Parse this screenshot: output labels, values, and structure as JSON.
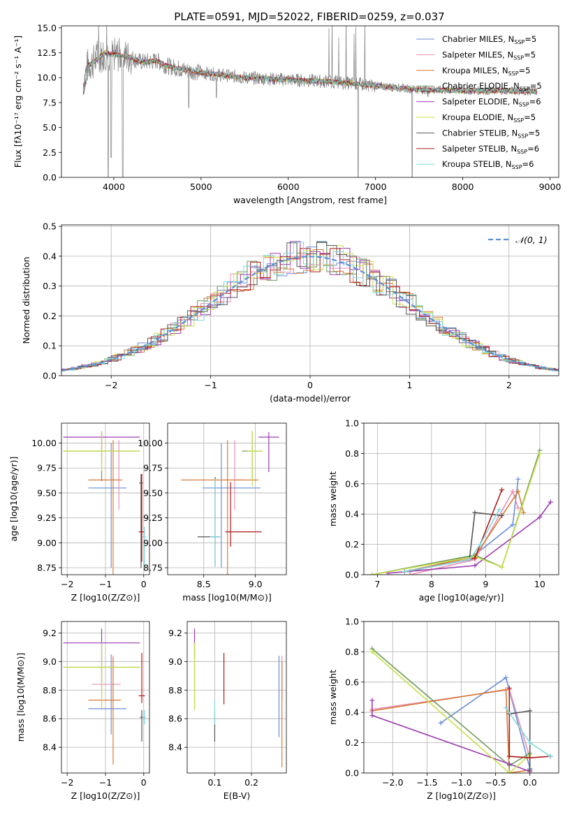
{
  "figure_title": "PLATE=0591, MJD=52022, FIBERID=0259, z=0.037",
  "models": [
    {
      "name": "Chabrier MILES, N_SSP=5",
      "base": "Chabrier MILES, N",
      "sub": "SSP",
      "suffix": "=5",
      "color": "#6a8ed8"
    },
    {
      "name": "Salpeter MILES, N_SSP=5",
      "base": "Salpeter MILES, N",
      "sub": "SSP",
      "suffix": "=5",
      "color": "#e88fb3"
    },
    {
      "name": "Kroupa MILES, N_SSP=5",
      "base": "Kroupa MILES, N",
      "sub": "SSP",
      "suffix": "=5",
      "color": "#d87a35"
    },
    {
      "name": "Chabrier ELODIE, N_SSP=5",
      "base": "Chabrier ELODIE, N",
      "sub": "SSP",
      "suffix": "=5",
      "color": "#6e9a5a"
    },
    {
      "name": "Salpeter ELODIE, N_SSP=6",
      "base": "Salpeter ELODIE, N",
      "sub": "SSP",
      "suffix": "=6",
      "color": "#9c3cb0"
    },
    {
      "name": "Kroupa ELODIE, N_SSP=5",
      "base": "Kroupa ELODIE, N",
      "sub": "SSP",
      "suffix": "=5",
      "color": "#c8e04a"
    },
    {
      "name": "Chabrier STELIB, N_SSP=5",
      "base": "Chabrier STELIB, N",
      "sub": "SSP",
      "suffix": "=5",
      "color": "#555555"
    },
    {
      "name": "Salpeter STELIB, N_SSP=6",
      "base": "Salpeter STELIB, N",
      "sub": "SSP",
      "suffix": "=6",
      "color": "#b01818"
    },
    {
      "name": "Kroupa STELIB, N_SSP=6",
      "base": "Kroupa STELIB, N",
      "sub": "SSP",
      "suffix": "=6",
      "color": "#7fd8dc"
    }
  ],
  "chart_data": [
    {
      "id": "spectrum",
      "type": "line",
      "xlabel": "wavelength [Angstrom, rest frame]",
      "ylabel": "Flux [fλ10⁻¹⁷ erg cm⁻² s⁻¹ A⁻¹]",
      "xlim": [
        3400,
        9100
      ],
      "ylim": [
        0,
        15.2
      ],
      "xticks": [
        4000,
        5000,
        6000,
        7000,
        8000,
        9000
      ],
      "yticks": [
        0.0,
        2.5,
        5.0,
        7.5,
        10.0,
        12.5,
        15.0
      ],
      "data_color": "#808080",
      "continuum": [
        [
          3650,
          9.5
        ],
        [
          3700,
          11.2
        ],
        [
          3800,
          11.8
        ],
        [
          3900,
          12.5
        ],
        [
          4000,
          12.3
        ],
        [
          4100,
          12.2
        ],
        [
          4200,
          12.0
        ],
        [
          4300,
          11.6
        ],
        [
          4400,
          11.6
        ],
        [
          4500,
          11.7
        ],
        [
          4600,
          11.2
        ],
        [
          4800,
          10.8
        ],
        [
          5000,
          10.5
        ],
        [
          5200,
          10.3
        ],
        [
          5500,
          10.0
        ],
        [
          6000,
          9.8
        ],
        [
          6500,
          9.6
        ],
        [
          7000,
          9.2
        ],
        [
          7500,
          8.8
        ],
        [
          8000,
          8.7
        ],
        [
          8500,
          8.7
        ],
        [
          8850,
          8.6
        ]
      ],
      "dips": [
        [
          3935,
          0
        ],
        [
          3970,
          2
        ],
        [
          4102,
          0
        ],
        [
          4861,
          7
        ],
        [
          5175,
          8
        ],
        [
          6563,
          10
        ],
        [
          6800,
          0
        ],
        [
          7420,
          0
        ],
        [
          7600,
          8.1
        ]
      ]
    },
    {
      "id": "residuals",
      "type": "histogram",
      "xlabel": "(data-model)/error",
      "ylabel": "Normed distribution",
      "xlim": [
        -2.5,
        2.5
      ],
      "ylim": [
        0,
        0.505
      ],
      "xticks": [
        -2,
        -1,
        0,
        1,
        2
      ],
      "yticks": [
        0.0,
        0.1,
        0.2,
        0.3,
        0.4,
        0.5
      ],
      "bin_width": 0.1,
      "normal_label": "𝒩(0, 1)",
      "normal_color": "#5b8fd6"
    },
    {
      "id": "age_vs_Z",
      "type": "errorbar",
      "xlabel": "Z [log10(Z/Z⊙)]",
      "ylabel": "age  [log10(age/yr)]",
      "xlim": [
        -2.15,
        0.15
      ],
      "ylim": [
        8.68,
        10.2
      ],
      "xticks": [
        -2,
        -1,
        0
      ],
      "yticks": [
        8.75,
        9.0,
        9.25,
        9.5,
        9.75,
        10.0
      ],
      "points": [
        {
          "x": -0.85,
          "xerr": [
            0.6,
            0.4
          ],
          "y": 9.55,
          "yerr": [
            0.8,
            0.45
          ],
          "model": 0
        },
        {
          "x": -0.65,
          "xerr": [
            0.7,
            0.1
          ],
          "y": 9.63,
          "yerr": [
            0.3,
            0.4
          ],
          "model": 1
        },
        {
          "x": -0.8,
          "xerr": [
            0.65,
            0.2
          ],
          "y": 9.63,
          "yerr": [
            0.95,
            0.4
          ],
          "model": 2
        },
        {
          "x": -1.1,
          "xerr": [
            1.0,
            1.0
          ],
          "y": 9.92,
          "yerr": [
            0.3,
            0.2
          ],
          "model": 3
        },
        {
          "x": -1.1,
          "xerr": [
            1.0,
            1.0
          ],
          "y": 10.06,
          "yerr": [
            0.2,
            0.05
          ],
          "model": 4
        },
        {
          "x": -1.1,
          "xerr": [
            1.0,
            1.0
          ],
          "y": 9.92,
          "yerr": [
            0.2,
            0.2
          ],
          "model": 5
        },
        {
          "x": -0.07,
          "xerr": [
            0.05,
            0.05
          ],
          "y": 9.6,
          "yerr": [
            0.85,
            0.09
          ],
          "model": 6
        },
        {
          "x": -0.05,
          "xerr": [
            0.08,
            0.08
          ],
          "y": 9.11,
          "yerr": [
            0.3,
            0.58
          ],
          "model": 7
        },
        {
          "x": 0.02,
          "xerr": [
            0.05,
            0.05
          ],
          "y": 9.06,
          "yerr": [
            0.3,
            0.1
          ],
          "model": 8
        }
      ]
    },
    {
      "id": "age_vs_mass",
      "type": "errorbar",
      "xlabel": "mass [log10(M/M⊙)]",
      "ylabel": "",
      "xlim": [
        8.15,
        9.3
      ],
      "ylim": [
        8.68,
        10.2
      ],
      "xticks": [
        8.5,
        9.0
      ],
      "yticks": [
        8.75,
        9.0,
        9.25,
        9.5,
        9.75,
        10.0
      ],
      "points": [
        {
          "x": 8.67,
          "xerr": [
            0.18,
            0.38
          ],
          "y": 9.55,
          "yerr": [
            0.8,
            0.45
          ],
          "model": 0
        },
        {
          "x": 8.8,
          "xerr": [
            0.1,
            0.1
          ],
          "y": 9.63,
          "yerr": [
            0.3,
            0.4
          ],
          "model": 1
        },
        {
          "x": 8.73,
          "xerr": [
            0.45,
            0.3
          ],
          "y": 9.63,
          "yerr": [
            0.95,
            0.4
          ],
          "model": 2
        },
        {
          "x": 8.97,
          "xerr": [
            0.1,
            0.1
          ],
          "y": 9.92,
          "yerr": [
            0.3,
            0.2
          ],
          "model": 3
        },
        {
          "x": 9.13,
          "xerr": [
            0.1,
            0.1
          ],
          "y": 10.06,
          "yerr": [
            0.35,
            0.05
          ],
          "model": 4
        },
        {
          "x": 8.97,
          "xerr": [
            0.05,
            0.1
          ],
          "y": 9.92,
          "yerr": [
            0.35,
            0.2
          ],
          "model": 5
        },
        {
          "x": 8.61,
          "xerr": [
            0.17,
            0.05
          ],
          "y": 9.06,
          "yerr": [
            0.3,
            0.6
          ],
          "model": 6
        },
        {
          "x": 8.76,
          "xerr": [
            0.05,
            0.3
          ],
          "y": 9.11,
          "yerr": [
            0.15,
            0.5
          ],
          "model": 7
        },
        {
          "x": 8.61,
          "xerr": [
            0.05,
            0.05
          ],
          "y": 9.06,
          "yerr": [
            0.3,
            0.58
          ],
          "model": 8
        }
      ]
    },
    {
      "id": "weight_vs_age",
      "type": "line",
      "xlabel": "age  [log10(age/yr)]",
      "ylabel": "mass weight",
      "xlim": [
        6.75,
        10.35
      ],
      "ylim": [
        0,
        1.0
      ],
      "xticks": [
        7,
        8,
        9,
        10
      ],
      "yticks": [
        0.0,
        0.2,
        0.4,
        0.6,
        0.8,
        1.0
      ],
      "series": [
        {
          "model": 0,
          "x": [
            7.6,
            8.8,
            9.5,
            9.6
          ],
          "y": [
            0.02,
            0.13,
            0.33,
            0.63
          ]
        },
        {
          "model": 1,
          "x": [
            7.6,
            8.8,
            9.5,
            9.6
          ],
          "y": [
            0.0,
            0.1,
            0.55,
            0.44
          ]
        },
        {
          "model": 2,
          "x": [
            7.5,
            8.8,
            9.6,
            9.7
          ],
          "y": [
            0.02,
            0.12,
            0.55,
            0.41
          ]
        },
        {
          "model": 3,
          "x": [
            6.9,
            8.8,
            9.3,
            10.0
          ],
          "y": [
            0.0,
            0.13,
            0.05,
            0.82
          ]
        },
        {
          "model": 4,
          "x": [
            7.2,
            8.8,
            10.0,
            10.2
          ],
          "y": [
            0.01,
            0.06,
            0.38,
            0.48
          ]
        },
        {
          "model": 5,
          "x": [
            6.9,
            8.8,
            9.3,
            10.0
          ],
          "y": [
            0.0,
            0.12,
            0.05,
            0.8
          ]
        },
        {
          "model": 6,
          "x": [
            7.5,
            8.7,
            8.8,
            9.3
          ],
          "y": [
            0.02,
            0.1,
            0.41,
            0.39
          ]
        },
        {
          "model": 7,
          "x": [
            7.5,
            8.7,
            8.8,
            9.3
          ],
          "y": [
            0.02,
            0.1,
            0.11,
            0.56
          ]
        },
        {
          "model": 8,
          "x": [
            7.5,
            8.7,
            8.9,
            9.25
          ],
          "y": [
            0.02,
            0.1,
            0.2,
            0.43
          ]
        }
      ]
    },
    {
      "id": "mass_vs_Z",
      "type": "errorbar",
      "xlabel": "Z [log10(Z/Z⊙)]",
      "ylabel": "mass [log10(M/M⊙)]",
      "xlim": [
        -2.15,
        0.15
      ],
      "ylim": [
        8.22,
        9.28
      ],
      "xticks": [
        -2,
        -1,
        0
      ],
      "yticks": [
        8.4,
        8.6,
        8.8,
        9.0,
        9.2
      ],
      "points": [
        {
          "x": -0.85,
          "xerr": [
            0.6,
            0.4
          ],
          "y": 8.67,
          "yerr": [
            0.18,
            0.38
          ],
          "model": 0
        },
        {
          "x": -0.8,
          "xerr": [
            0.55,
            0.2
          ],
          "y": 8.84,
          "yerr": [
            0.1,
            0.2
          ],
          "model": 1
        },
        {
          "x": -0.8,
          "xerr": [
            0.65,
            0.2
          ],
          "y": 8.73,
          "yerr": [
            0.45,
            0.3
          ],
          "model": 2
        },
        {
          "x": -1.1,
          "xerr": [
            1.0,
            1.0
          ],
          "y": 8.96,
          "yerr": [
            0.3,
            0.17
          ],
          "model": 3
        },
        {
          "x": -1.1,
          "xerr": [
            1.0,
            1.0
          ],
          "y": 9.13,
          "yerr": [
            0.28,
            0.1
          ],
          "model": 4
        },
        {
          "x": -1.1,
          "xerr": [
            1.0,
            1.0
          ],
          "y": 8.96,
          "yerr": [
            0.3,
            0.17
          ],
          "model": 5
        },
        {
          "x": -0.05,
          "xerr": [
            0.05,
            0.05
          ],
          "y": 8.61,
          "yerr": [
            0.17,
            0.05
          ],
          "model": 6
        },
        {
          "x": -0.05,
          "xerr": [
            0.08,
            0.08
          ],
          "y": 8.76,
          "yerr": [
            0.05,
            0.3
          ],
          "model": 7
        },
        {
          "x": 0.02,
          "xerr": [
            0.05,
            0.05
          ],
          "y": 8.61,
          "yerr": [
            0.05,
            0.05
          ],
          "model": 8
        }
      ]
    },
    {
      "id": "mass_vs_ebv",
      "type": "errorbar",
      "xlabel": "E(B-V)",
      "ylabel": "",
      "xlim": [
        0.025,
        0.295
      ],
      "ylim": [
        8.22,
        9.28
      ],
      "xticks": [
        0.1,
        0.2
      ],
      "yticks": [
        8.4,
        8.6,
        8.8,
        9.0,
        9.2
      ],
      "points": [
        {
          "x": 0.275,
          "xerr": [
            0,
            0
          ],
          "y": 8.67,
          "yerr": [
            0.2,
            0.37
          ],
          "model": 0
        },
        {
          "x": 0.283,
          "xerr": [
            0,
            0
          ],
          "y": 8.84,
          "yerr": [
            0.1,
            0.2
          ],
          "model": 1
        },
        {
          "x": 0.283,
          "xerr": [
            0,
            0
          ],
          "y": 8.73,
          "yerr": [
            0.47,
            0.27
          ],
          "model": 2
        },
        {
          "x": 0.045,
          "xerr": [
            0,
            0
          ],
          "y": 8.96,
          "yerr": [
            0.3,
            0.17
          ],
          "model": 3
        },
        {
          "x": 0.045,
          "xerr": [
            0,
            0
          ],
          "y": 9.13,
          "yerr": [
            0.1,
            0.1
          ],
          "model": 4
        },
        {
          "x": 0.045,
          "xerr": [
            0,
            0
          ],
          "y": 8.96,
          "yerr": [
            0.3,
            0.17
          ],
          "model": 5
        },
        {
          "x": 0.1,
          "xerr": [
            0,
            0
          ],
          "y": 8.61,
          "yerr": [
            0.17,
            0.05
          ],
          "model": 6
        },
        {
          "x": 0.125,
          "xerr": [
            0,
            0
          ],
          "y": 8.76,
          "yerr": [
            0.06,
            0.3
          ],
          "model": 7
        },
        {
          "x": 0.1,
          "xerr": [
            0,
            0
          ],
          "y": 8.61,
          "yerr": [
            0.05,
            0.12
          ],
          "model": 8
        }
      ]
    },
    {
      "id": "weight_vs_Z",
      "type": "line",
      "xlabel": "Z [log10(Z/Z⊙)]",
      "ylabel": "mass weight",
      "xlim": [
        -2.42,
        0.42
      ],
      "ylim": [
        0,
        1.0
      ],
      "xticks": [
        -2.0,
        -1.5,
        -1.0,
        -0.5,
        0.0
      ],
      "yticks": [
        0.0,
        0.2,
        0.4,
        0.6,
        0.8,
        1.0
      ],
      "series": [
        {
          "model": 0,
          "x": [
            -1.3,
            -0.35,
            0.0
          ],
          "y": [
            0.33,
            0.63,
            0.03
          ]
        },
        {
          "model": 1,
          "x": [
            -2.3,
            -0.3,
            0.0,
            0.0
          ],
          "y": [
            0.42,
            0.55,
            0.1,
            0.0
          ]
        },
        {
          "model": 2,
          "x": [
            -2.3,
            -0.35,
            -0.3,
            0.0
          ],
          "y": [
            0.41,
            0.55,
            0.0,
            0.02
          ]
        },
        {
          "model": 3,
          "x": [
            -2.3,
            -0.3,
            0.0
          ],
          "y": [
            0.82,
            0.05,
            0.13
          ]
        },
        {
          "model": 4,
          "x": [
            -2.3,
            -2.3,
            -0.3,
            0.0
          ],
          "y": [
            0.48,
            0.38,
            0.06,
            0.01
          ]
        },
        {
          "model": 5,
          "x": [
            -2.3,
            -0.3,
            0.0
          ],
          "y": [
            0.8,
            0.0,
            0.12
          ]
        },
        {
          "model": 6,
          "x": [
            -0.3,
            0.0,
            0.0
          ],
          "y": [
            0.39,
            0.41,
            0.02
          ]
        },
        {
          "model": 7,
          "x": [
            -0.3,
            -0.3,
            0.0,
            0.3
          ],
          "y": [
            0.56,
            0.11,
            0.1,
            0.11
          ]
        },
        {
          "model": 8,
          "x": [
            -0.35,
            0.0,
            0.3
          ],
          "y": [
            0.43,
            0.2,
            0.11
          ]
        }
      ]
    }
  ]
}
